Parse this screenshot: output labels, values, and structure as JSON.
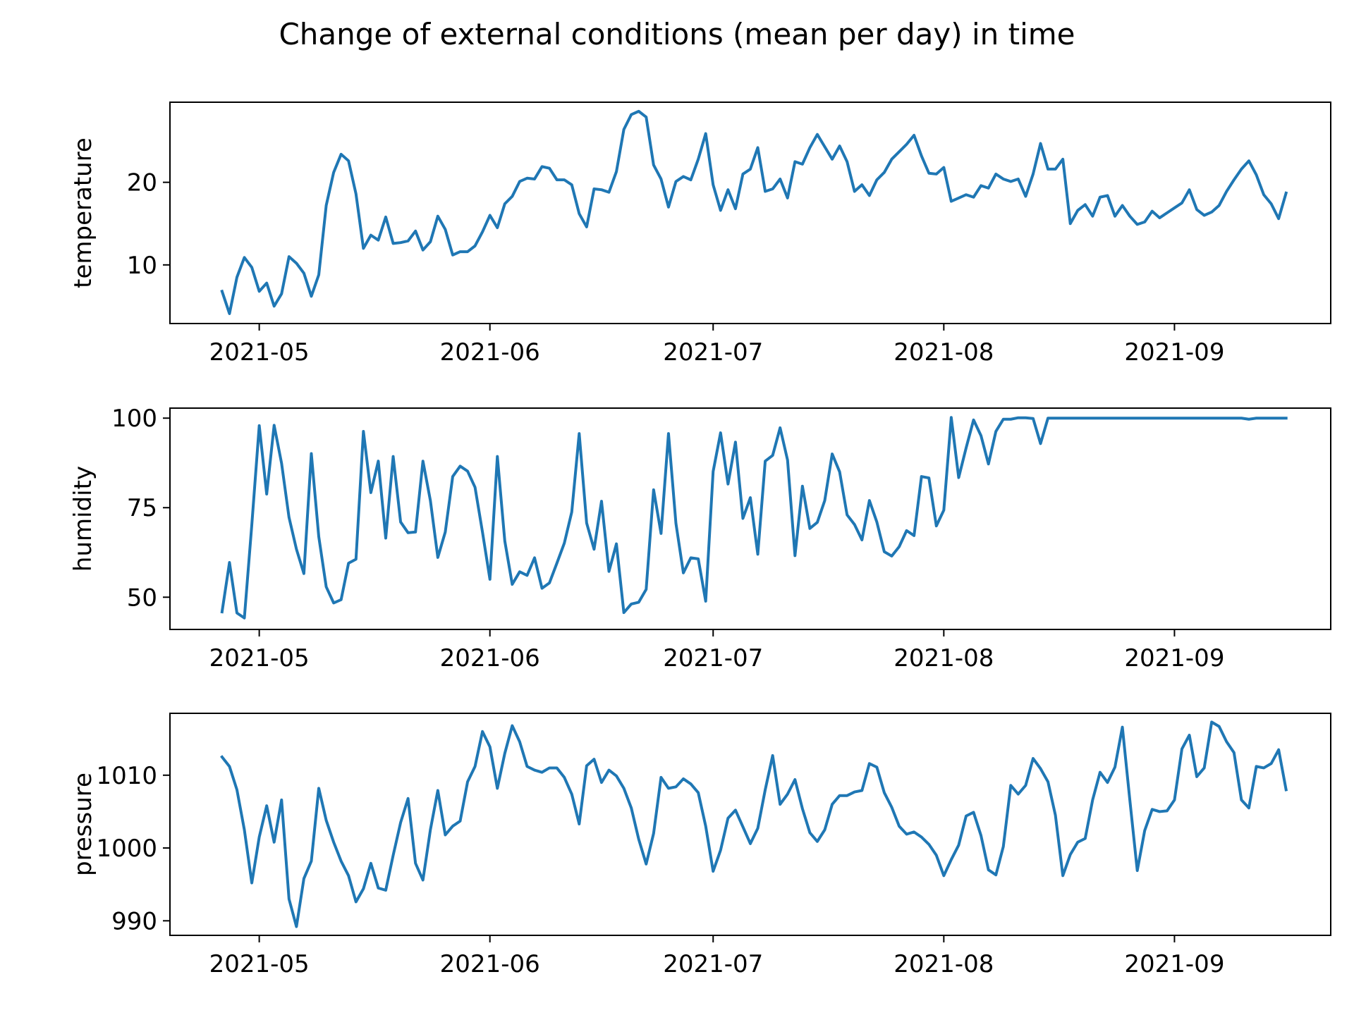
{
  "figure": {
    "title": "Change of external conditions (mean per day) in time",
    "line_color": "#1f77b4"
  },
  "chart_data": [
    {
      "type": "line",
      "ylabel": "temperature",
      "xlabel": "",
      "x_start": "2021-04-26",
      "x_end": "2021-09-15",
      "xlim": [
        "2021-04-19",
        "2021-09-22"
      ],
      "x_ticks": [
        "2021-05",
        "2021-06",
        "2021-07",
        "2021-08",
        "2021-09"
      ],
      "x_tick_dates": [
        "2021-05-01",
        "2021-06-01",
        "2021-07-01",
        "2021-08-01",
        "2021-09-01"
      ],
      "ylim": [
        2.9,
        29.7
      ],
      "y_ticks": [
        10,
        20
      ],
      "series": [
        {
          "values": [
            6.8,
            4.1,
            8.5,
            10.9,
            9.7,
            6.8,
            7.8,
            5.0,
            6.5,
            11.0,
            10.2,
            9.0,
            6.2,
            8.8,
            17.2,
            21.2,
            23.4,
            22.6,
            18.6,
            12.0,
            13.6,
            13.0,
            15.8,
            12.6,
            12.7,
            12.9,
            14.1,
            11.8,
            12.8,
            15.9,
            14.3,
            11.2,
            11.6,
            11.6,
            12.3,
            14.0,
            16.0,
            14.5,
            17.4,
            18.3,
            20.1,
            20.5,
            20.4,
            21.9,
            21.7,
            20.3,
            20.3,
            19.7,
            16.2,
            14.6,
            19.2,
            19.1,
            18.8,
            21.3,
            26.4,
            28.2,
            28.6,
            27.9,
            22.1,
            20.4,
            17.0,
            20.1,
            20.7,
            20.3,
            22.8,
            25.9,
            19.7,
            16.6,
            19.1,
            16.8,
            21.0,
            21.6,
            24.2,
            18.9,
            19.2,
            20.4,
            18.1,
            22.5,
            22.2,
            24.2,
            25.8,
            24.3,
            22.8,
            24.4,
            22.5,
            18.9,
            19.7,
            18.4,
            20.3,
            21.2,
            22.8,
            23.7,
            24.6,
            25.7,
            23.2,
            21.1,
            21.0,
            21.8,
            17.7,
            18.1,
            18.5,
            18.2,
            19.6,
            19.3,
            21.0,
            20.4,
            20.1,
            20.4,
            18.3,
            21.0,
            24.7,
            21.6,
            21.6,
            22.8,
            15.0,
            16.6,
            17.3,
            15.9,
            18.2,
            18.4,
            15.9,
            17.2,
            15.9,
            14.9,
            15.2,
            16.5,
            15.7,
            16.3,
            16.9,
            17.5,
            19.1,
            16.7,
            16.0,
            16.4,
            17.2,
            18.9,
            20.3,
            21.6,
            22.6,
            20.9,
            18.5,
            17.4,
            15.6,
            18.7
          ]
        }
      ]
    },
    {
      "type": "line",
      "ylabel": "humidity",
      "xlabel": "",
      "x_start": "2021-04-26",
      "x_end": "2021-09-15",
      "xlim": [
        "2021-04-19",
        "2021-09-22"
      ],
      "x_ticks": [
        "2021-05",
        "2021-06",
        "2021-07",
        "2021-08",
        "2021-09"
      ],
      "x_tick_dates": [
        "2021-05-01",
        "2021-06-01",
        "2021-07-01",
        "2021-08-01",
        "2021-09-01"
      ],
      "ylim": [
        41.0,
        102.8
      ],
      "y_ticks": [
        50,
        75,
        100
      ],
      "series": [
        {
          "values": [
            45.9,
            59.7,
            45.6,
            44.2,
            70.2,
            97.9,
            78.8,
            98.0,
            87.4,
            72.3,
            63.4,
            56.6,
            90.1,
            66.9,
            52.9,
            48.4,
            49.3,
            59.5,
            60.6,
            96.3,
            79.2,
            88.0,
            66.5,
            89.3,
            71.0,
            68.0,
            68.2,
            88.0,
            77.0,
            61.1,
            68.2,
            83.7,
            86.6,
            85.2,
            80.7,
            68.2,
            55.0,
            89.3,
            65.7,
            53.6,
            57.1,
            56.1,
            61.0,
            52.5,
            54.0,
            59.5,
            65.1,
            73.8,
            95.7,
            70.7,
            63.4,
            76.8,
            57.2,
            64.9,
            45.7,
            48.1,
            48.6,
            52.2,
            80.0,
            67.8,
            95.7,
            70.6,
            56.8,
            61.0,
            60.7,
            48.9,
            85.1,
            95.9,
            81.6,
            93.3,
            72.0,
            77.8,
            62.0,
            88.0,
            89.6,
            97.3,
            88.3,
            61.6,
            81.0,
            69.2,
            70.9,
            77.0,
            90.0,
            85.0,
            73.0,
            70.3,
            66.0,
            77.0,
            71.0,
            62.7,
            61.5,
            64.1,
            68.6,
            67.2,
            83.7,
            83.3,
            69.9,
            74.3,
            100.2,
            83.4,
            91.7,
            99.5,
            95.1,
            87.2,
            96.3,
            99.7,
            99.7,
            100.1,
            100.1,
            99.9,
            92.9,
            100.0,
            100.0,
            100.0,
            100.0,
            100.0,
            100.0,
            100.0,
            100.0,
            100.0,
            100.0,
            100.0,
            100.0,
            100.0,
            100.0,
            100.0,
            100.0,
            100.0,
            100.0,
            100.0,
            100.0,
            100.0,
            100.0,
            100.0,
            100.0,
            100.0,
            100.0,
            100.0,
            99.7,
            100.0,
            100.0,
            100.0,
            100.0,
            100.0
          ]
        }
      ]
    },
    {
      "type": "line",
      "ylabel": "pressure",
      "xlabel": "",
      "x_start": "2021-04-26",
      "x_end": "2021-09-15",
      "xlim": [
        "2021-04-19",
        "2021-09-22"
      ],
      "x_ticks": [
        "2021-05",
        "2021-06",
        "2021-07",
        "2021-08",
        "2021-09"
      ],
      "x_tick_dates": [
        "2021-05-01",
        "2021-06-01",
        "2021-07-01",
        "2021-08-01",
        "2021-09-01"
      ],
      "ylim": [
        988.0,
        1018.5
      ],
      "y_ticks": [
        990,
        1000,
        1010
      ],
      "series": [
        {
          "values": [
            1012.5,
            1011.2,
            1008.0,
            1002.5,
            995.2,
            1001.5,
            1005.8,
            1000.8,
            1006.6,
            993.0,
            989.2,
            995.8,
            998.2,
            1008.2,
            1003.8,
            1000.8,
            998.2,
            996.2,
            992.6,
            994.4,
            997.9,
            994.5,
            994.2,
            999.0,
            1003.5,
            1006.8,
            997.9,
            995.6,
            1002.5,
            1007.9,
            1001.8,
            1003.0,
            1003.7,
            1009.1,
            1011.2,
            1016.0,
            1013.9,
            1008.2,
            1013.0,
            1016.8,
            1014.6,
            1011.2,
            1010.7,
            1010.4,
            1011.0,
            1011.0,
            1009.7,
            1007.4,
            1003.3,
            1011.3,
            1012.2,
            1009.0,
            1010.7,
            1009.9,
            1008.2,
            1005.5,
            1001.2,
            997.8,
            1002.0,
            1009.7,
            1008.2,
            1008.4,
            1009.5,
            1008.8,
            1007.6,
            1003.0,
            996.8,
            999.7,
            1004.1,
            1005.2,
            1002.9,
            1000.6,
            1002.7,
            1008.0,
            1012.7,
            1006.0,
            1007.4,
            1009.4,
            1005.4,
            1002.1,
            1000.9,
            1002.5,
            1006.0,
            1007.2,
            1007.2,
            1007.7,
            1007.9,
            1011.6,
            1011.1,
            1007.6,
            1005.6,
            1003.0,
            1001.9,
            1002.2,
            1001.5,
            1000.5,
            999.0,
            996.2,
            998.4,
            1000.4,
            1004.4,
            1004.9,
            1001.7,
            997.0,
            996.3,
            1000.2,
            1008.6,
            1007.4,
            1008.6,
            1012.3,
            1010.9,
            1009.1,
            1004.5,
            996.2,
            999.1,
            1000.8,
            1001.3,
            1006.6,
            1010.4,
            1009.0,
            1011.1,
            1016.6,
            1006.6,
            996.9,
            1002.4,
            1005.3,
            1005.0,
            1005.1,
            1006.6,
            1013.6,
            1015.5,
            1009.8,
            1011.0,
            1017.3,
            1016.7,
            1014.6,
            1013.1,
            1006.6,
            1005.5,
            1011.2,
            1011.0,
            1011.6,
            1013.5,
            1008.0
          ]
        }
      ]
    }
  ]
}
